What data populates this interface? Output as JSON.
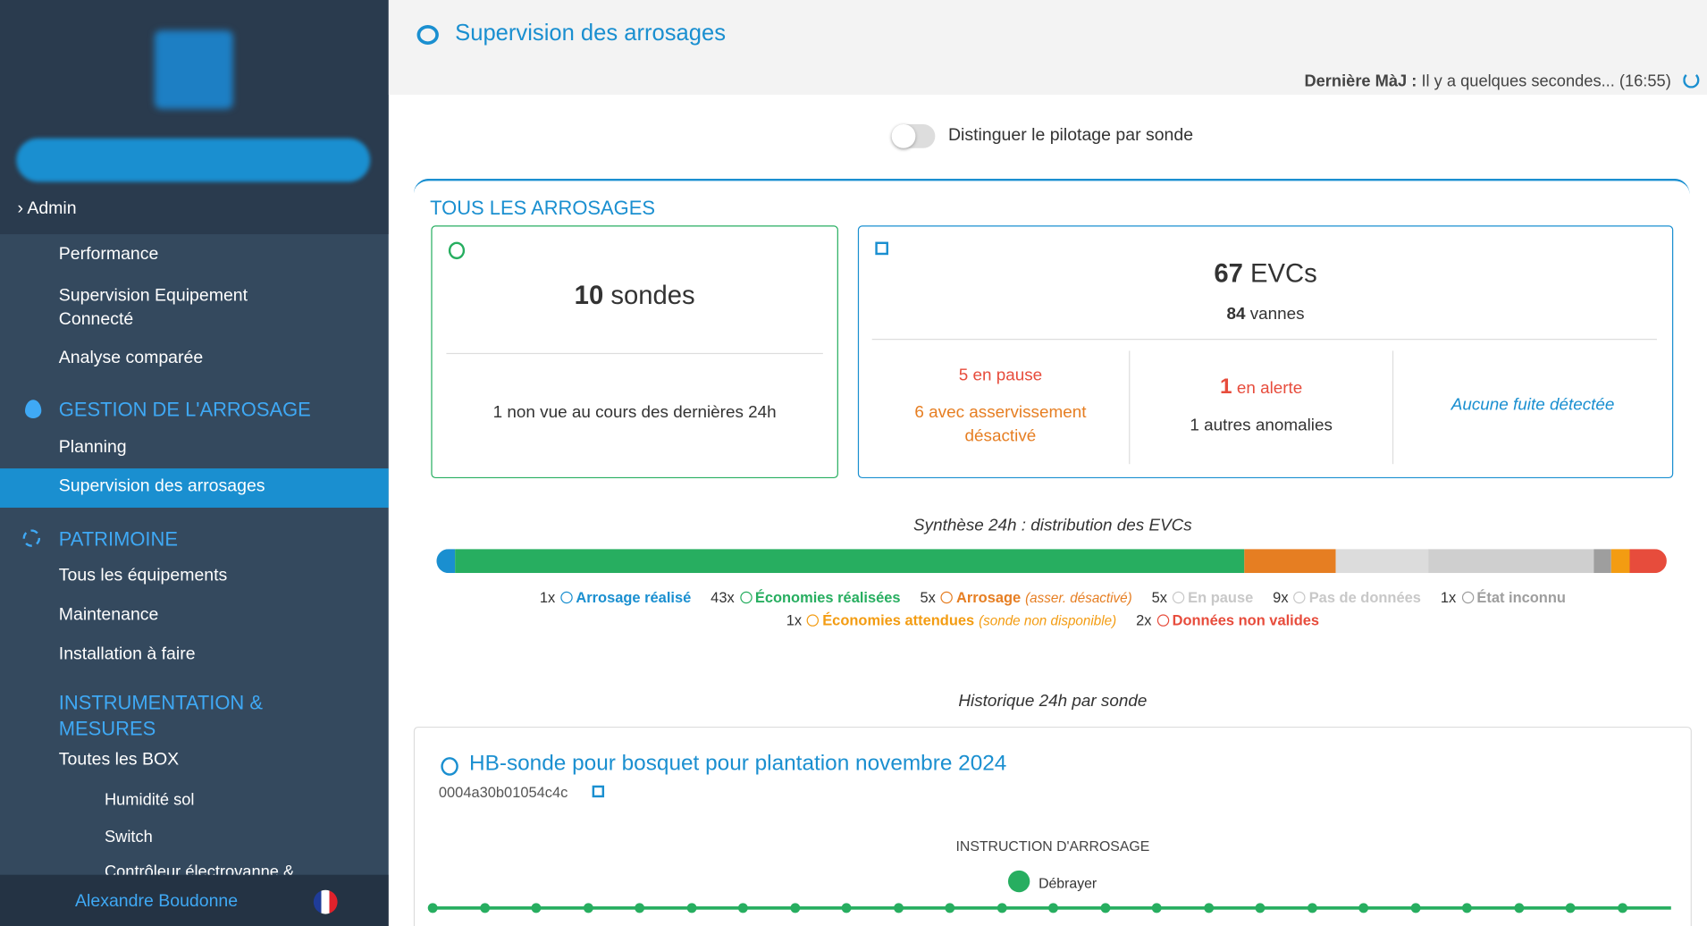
{
  "sidebar": {
    "admin": "Admin",
    "admin_items": [
      "Performance",
      "Supervision Equipement Connecté",
      "Analyse comparée"
    ],
    "gestion": {
      "title": "GESTION DE L'ARROSAGE",
      "items": [
        "Planning",
        "Supervision des arrosages"
      ]
    },
    "patrimoine": {
      "title": "PATRIMOINE",
      "items": [
        "Tous les équipements",
        "Maintenance",
        "Installation à faire"
      ]
    },
    "instrumentation": {
      "title": "INSTRUMENTATION & MESURES",
      "sub": "Toutes les BOX",
      "items": [
        "Humidité sol",
        "Switch",
        "Contrôleur électrovanne &"
      ]
    },
    "user": "Alexandre Boudonne"
  },
  "header": {
    "title": "Supervision des arrosages",
    "last_update_label": "Dernière MàJ :",
    "last_update_value": "Il y a quelques secondes... (16:55)"
  },
  "toggle_label": "Distinguer le pilotage par sonde",
  "section_title": "TOUS LES ARROSAGES",
  "sondes": {
    "count": 10,
    "unit": "sondes",
    "note_count": 1,
    "note": "non vue au cours des dernières 24h"
  },
  "evcs": {
    "count": 67,
    "unit": "EVCs",
    "vannes_count": 84,
    "vannes": "vannes",
    "pause_count": 5,
    "pause": "en pause",
    "asserv_count": 6,
    "asserv": "avec asservissement désactivé",
    "alert_count": 1,
    "alert": "en alerte",
    "anomalies_count": 1,
    "anomalies": "autres anomalies",
    "leak": "Aucune fuite détectée"
  },
  "distribution": {
    "title": "Synthèse 24h : distribution des EVCs",
    "items": [
      {
        "count": 1,
        "count_label": "1x",
        "label": "Arrosage réalisé",
        "color": "#1a8fd0",
        "text_color": "#1a8fd0"
      },
      {
        "count": 43,
        "count_label": "43x",
        "label": "Économies réalisées",
        "color": "#27ae60",
        "text_color": "#27ae60"
      },
      {
        "count": 5,
        "count_label": "5x",
        "label": "Arrosage",
        "note": "(asser. désactivé)",
        "color": "#e67e22",
        "text_color": "#e67e22"
      },
      {
        "count": 5,
        "count_label": "5x",
        "label": "En pause",
        "color": "#dcdcdc",
        "text_color": "#c8c8c8"
      },
      {
        "count": 9,
        "count_label": "9x",
        "label": "Pas de données",
        "color": "#cfcfcf",
        "text_color": "#c8c8c8"
      },
      {
        "count": 1,
        "count_label": "1x",
        "label": "État inconnu",
        "color": "#9e9e9e",
        "text_color": "#9e9e9e"
      },
      {
        "count": 1,
        "count_label": "1x",
        "label": "Économies attendues",
        "note": "(sonde non disponible)",
        "color": "#f39c12",
        "text_color": "#f39c12"
      },
      {
        "count": 2,
        "count_label": "2x",
        "label": "Données non valides",
        "color": "#e74c3c",
        "text_color": "#e74c3c"
      }
    ]
  },
  "history": {
    "title": "Historique 24h par sonde",
    "probe_name": "HB-sonde pour bosquet pour plantation novembre 2024",
    "probe_id": "0004a30b01054c4c",
    "instruction_title": "INSTRUCTION D'ARROSAGE",
    "instruction": "Débrayer"
  }
}
